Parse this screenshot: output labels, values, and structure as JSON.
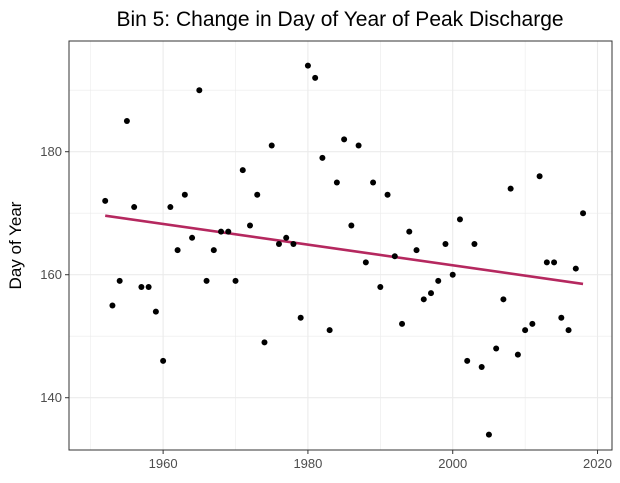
{
  "chart_data": {
    "type": "scatter",
    "title": "Bin 5: Change in Day of Year of Peak Discharge",
    "xlabel": "",
    "ylabel": "Day of Year",
    "xlim": [
      1947,
      2022
    ],
    "ylim": [
      131.5,
      198
    ],
    "x_ticks": [
      1960,
      1980,
      2000,
      2020
    ],
    "y_ticks": [
      140,
      160,
      180
    ],
    "grid": true,
    "colors": {
      "points": "#000000",
      "trend": "#b5285f",
      "grid": "#ebebeb",
      "panel_border": "#333333"
    },
    "points": [
      {
        "x": 1952,
        "y": 172
      },
      {
        "x": 1953,
        "y": 155
      },
      {
        "x": 1954,
        "y": 159
      },
      {
        "x": 1955,
        "y": 185
      },
      {
        "x": 1956,
        "y": 171
      },
      {
        "x": 1957,
        "y": 158
      },
      {
        "x": 1958,
        "y": 158
      },
      {
        "x": 1959,
        "y": 154
      },
      {
        "x": 1960,
        "y": 146
      },
      {
        "x": 1961,
        "y": 171
      },
      {
        "x": 1962,
        "y": 164
      },
      {
        "x": 1963,
        "y": 173
      },
      {
        "x": 1964,
        "y": 166
      },
      {
        "x": 1965,
        "y": 190
      },
      {
        "x": 1966,
        "y": 159
      },
      {
        "x": 1967,
        "y": 164
      },
      {
        "x": 1968,
        "y": 167
      },
      {
        "x": 1969,
        "y": 167
      },
      {
        "x": 1970,
        "y": 159
      },
      {
        "x": 1971,
        "y": 177
      },
      {
        "x": 1972,
        "y": 168
      },
      {
        "x": 1973,
        "y": 173
      },
      {
        "x": 1974,
        "y": 149
      },
      {
        "x": 1975,
        "y": 181
      },
      {
        "x": 1976,
        "y": 165
      },
      {
        "x": 1977,
        "y": 166
      },
      {
        "x": 1978,
        "y": 165
      },
      {
        "x": 1979,
        "y": 153
      },
      {
        "x": 1980,
        "y": 194
      },
      {
        "x": 1981,
        "y": 192
      },
      {
        "x": 1982,
        "y": 179
      },
      {
        "x": 1983,
        "y": 151
      },
      {
        "x": 1984,
        "y": 175
      },
      {
        "x": 1985,
        "y": 182
      },
      {
        "x": 1986,
        "y": 168
      },
      {
        "x": 1987,
        "y": 181
      },
      {
        "x": 1988,
        "y": 162
      },
      {
        "x": 1989,
        "y": 175
      },
      {
        "x": 1990,
        "y": 158
      },
      {
        "x": 1991,
        "y": 173
      },
      {
        "x": 1992,
        "y": 163
      },
      {
        "x": 1993,
        "y": 152
      },
      {
        "x": 1994,
        "y": 167
      },
      {
        "x": 1995,
        "y": 164
      },
      {
        "x": 1996,
        "y": 156
      },
      {
        "x": 1997,
        "y": 157
      },
      {
        "x": 1998,
        "y": 159
      },
      {
        "x": 1999,
        "y": 165
      },
      {
        "x": 2000,
        "y": 160
      },
      {
        "x": 2001,
        "y": 169
      },
      {
        "x": 2002,
        "y": 146
      },
      {
        "x": 2003,
        "y": 165
      },
      {
        "x": 2004,
        "y": 145
      },
      {
        "x": 2005,
        "y": 134
      },
      {
        "x": 2006,
        "y": 148
      },
      {
        "x": 2007,
        "y": 156
      },
      {
        "x": 2008,
        "y": 174
      },
      {
        "x": 2009,
        "y": 147
      },
      {
        "x": 2010,
        "y": 151
      },
      {
        "x": 2011,
        "y": 152
      },
      {
        "x": 2012,
        "y": 176
      },
      {
        "x": 2013,
        "y": 162
      },
      {
        "x": 2014,
        "y": 162
      },
      {
        "x": 2015,
        "y": 153
      },
      {
        "x": 2016,
        "y": 151
      },
      {
        "x": 2017,
        "y": 161
      },
      {
        "x": 2018,
        "y": 170
      }
    ],
    "trend_line": {
      "x": [
        1952,
        2018
      ],
      "y": [
        169.6,
        158.5
      ]
    }
  }
}
